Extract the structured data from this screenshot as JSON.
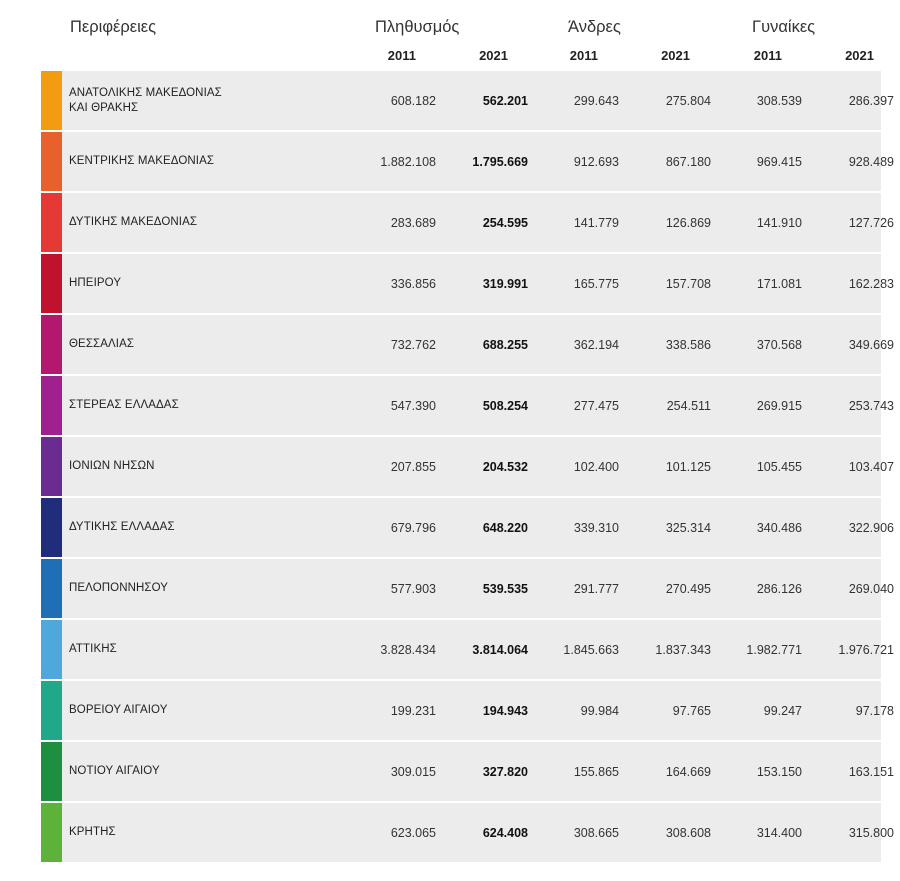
{
  "header": {
    "regions_label": "Περιφέρειες",
    "population_label": "Πληθυσμός",
    "men_label": "Άνδρες",
    "women_label": "Γυναίκες",
    "year_a": "2011",
    "year_b": "2021"
  },
  "rows": [
    {
      "region": "ΑΝΑΤΟΛΙΚΗΣ ΜΑΚΕΔΟΝΙΑΣ\nΚΑΙ ΘΡΑΚΗΣ",
      "color": "#f39c12",
      "pop2011": "608.182",
      "pop2021": "562.201",
      "men2011": "299.643",
      "men2021": "275.804",
      "women2011": "308.539",
      "women2021": "286.397"
    },
    {
      "region": "ΚΕΝΤΡΙΚΗΣ ΜΑΚΕΔΟΝΙΑΣ",
      "color": "#e8602c",
      "pop2011": "1.882.108",
      "pop2021": "1.795.669",
      "men2011": "912.693",
      "men2021": "867.180",
      "women2011": "969.415",
      "women2021": "928.489"
    },
    {
      "region": "ΔΥΤΙΚΗΣ ΜΑΚΕΔΟΝΙΑΣ",
      "color": "#e53935",
      "pop2011": "283.689",
      "pop2021": "254.595",
      "men2011": "141.779",
      "men2021": "126.869",
      "women2011": "141.910",
      "women2021": "127.726"
    },
    {
      "region": "ΗΠΕΙΡΟΥ",
      "color": "#c0122f",
      "pop2011": "336.856",
      "pop2021": "319.991",
      "men2011": "165.775",
      "men2021": "157.708",
      "women2011": "171.081",
      "women2021": "162.283"
    },
    {
      "region": "ΘΕΣΣΑΛΙΑΣ",
      "color": "#b3176e",
      "pop2011": "732.762",
      "pop2021": "688.255",
      "men2011": "362.194",
      "men2021": "338.586",
      "women2011": "370.568",
      "women2021": "349.669"
    },
    {
      "region": "ΣΤΕΡΕΑΣ ΕΛΛΑΔΑΣ",
      "color": "#a0208e",
      "pop2011": "547.390",
      "pop2021": "508.254",
      "men2011": "277.475",
      "men2021": "254.511",
      "women2011": "269.915",
      "women2021": "253.743"
    },
    {
      "region": "ΙΟΝΙΩΝ ΝΗΣΩΝ",
      "color": "#6a2c91",
      "pop2011": "207.855",
      "pop2021": "204.532",
      "men2011": "102.400",
      "men2021": "101.125",
      "women2011": "105.455",
      "women2021": "103.407"
    },
    {
      "region": "ΔΥΤΙΚΗΣ ΕΛΛΑΔΑΣ",
      "color": "#1f2d7a",
      "pop2011": "679.796",
      "pop2021": "648.220",
      "men2011": "339.310",
      "men2021": "325.314",
      "women2011": "340.486",
      "women2021": "322.906"
    },
    {
      "region": "ΠΕΛΟΠΟΝΝΗΣΟΥ",
      "color": "#1f6fb7",
      "pop2011": "577.903",
      "pop2021": "539.535",
      "men2011": "291.777",
      "men2021": "270.495",
      "women2011": "286.126",
      "women2021": "269.040"
    },
    {
      "region": "ΑΤΤΙΚΗΣ",
      "color": "#4fa8dc",
      "pop2011": "3.828.434",
      "pop2021": "3.814.064",
      "men2011": "1.845.663",
      "men2021": "1.837.343",
      "women2011": "1.982.771",
      "women2021": "1.976.721"
    },
    {
      "region": "ΒΟΡΕΙΟΥ ΑΙΓΑΙΟΥ",
      "color": "#1fa98a",
      "pop2011": "199.231",
      "pop2021": "194.943",
      "men2011": "99.984",
      "men2021": "97.765",
      "women2011": "99.247",
      "women2021": "97.178"
    },
    {
      "region": "ΝΟΤΙΟΥ ΑΙΓΑΙΟΥ",
      "color": "#1e8f3e",
      "pop2011": "309.015",
      "pop2021": "327.820",
      "men2011": "155.865",
      "men2021": "164.669",
      "women2011": "153.150",
      "women2021": "163.151"
    },
    {
      "region": "ΚΡΗΤΗΣ",
      "color": "#5db33a",
      "pop2011": "623.065",
      "pop2021": "624.408",
      "men2011": "308.665",
      "men2021": "308.608",
      "women2011": "314.400",
      "women2021": "315.800"
    }
  ]
}
